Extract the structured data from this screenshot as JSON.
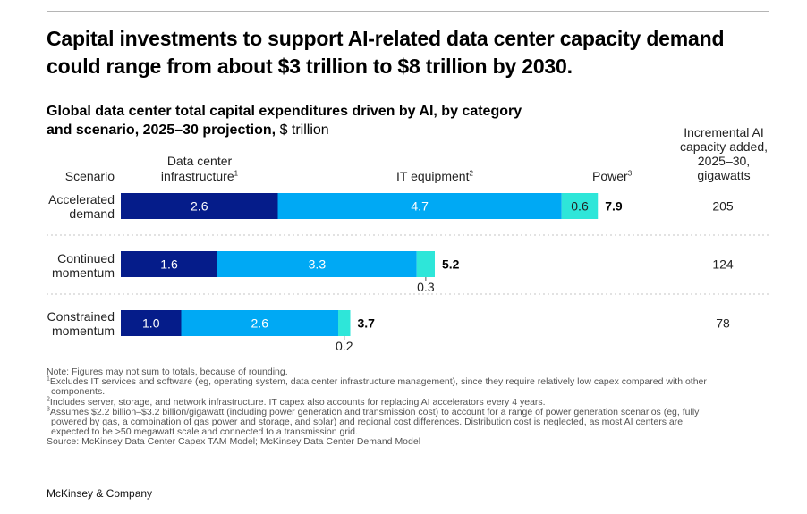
{
  "headline": "Capital investments to support AI-related data center capacity demand could range from about $3 trillion to $8 trillion by 2030.",
  "subtitle": {
    "main": "Global data center total capital expenditures driven by AI, by category and scenario, 2025–30 projection,",
    "unit": "$ trillion"
  },
  "side_header": [
    "Incremental AI",
    "capacity added,",
    "2025–30,",
    "gigawatts"
  ],
  "chart_data": {
    "type": "bar",
    "orientation": "horizontal",
    "stacked": true,
    "scenario_header": "Scenario",
    "categories": [
      "Accelerated demand",
      "Continued momentum",
      "Constrained momentum"
    ],
    "category_lines": [
      [
        "Accelerated",
        "demand"
      ],
      [
        "Continued",
        "momentum"
      ],
      [
        "Constrained",
        "momentum"
      ]
    ],
    "series": [
      {
        "name": "Data center infrastructure",
        "name_lines": [
          "Data center",
          "infrastructure"
        ],
        "footnote": "1",
        "color": "#051c8a",
        "values": [
          2.6,
          1.6,
          1.0
        ],
        "labels": [
          "2.6",
          "1.6",
          "1.0"
        ]
      },
      {
        "name": "IT equipment",
        "name_lines": [
          "IT equipment"
        ],
        "footnote": "2",
        "color": "#00a9f4",
        "values": [
          4.7,
          3.3,
          2.6
        ],
        "labels": [
          "4.7",
          "3.3",
          "2.6"
        ]
      },
      {
        "name": "Power",
        "name_lines": [
          "Power"
        ],
        "footnote": "3",
        "color": "#2ee6d9",
        "values": [
          0.6,
          0.3,
          0.2
        ],
        "labels": [
          "0.6",
          "0.3",
          "0.2"
        ]
      }
    ],
    "totals": [
      "7.9",
      "5.2",
      "3.7"
    ],
    "capacity_gigawatts": [
      "205",
      "124",
      "78"
    ],
    "xlim": [
      0,
      8
    ]
  },
  "notes": {
    "note": "Note: Figures may not sum to totals, because of rounding.",
    "fn1_num": "1",
    "fn1_line1": "Excludes IT services and software (eg, operating system, data center infrastructure management), since they require relatively low capex compared with other",
    "fn1_line2": "components.",
    "fn2_num": "2",
    "fn2": "Includes server, storage, and network infrastructure. IT capex also accounts for replacing AI accelerators every 4 years.",
    "fn3_num": "3",
    "fn3_line1": "Assumes $2.2 billion–$3.2 billion/gigawatt (including power generation and transmission cost) to account for a range of power generation scenarios (eg, fully",
    "fn3_line2": "powered by gas, a combination of gas power and storage, and solar) and regional cost differences. Distribution cost is neglected, as most AI centers are",
    "fn3_line3": "expected to be >50 megawatt scale and connected to a transmission grid.",
    "source": "Source: McKinsey Data Center Capex TAM Model; McKinsey Data Center Demand Model"
  },
  "brand": "McKinsey & Company"
}
